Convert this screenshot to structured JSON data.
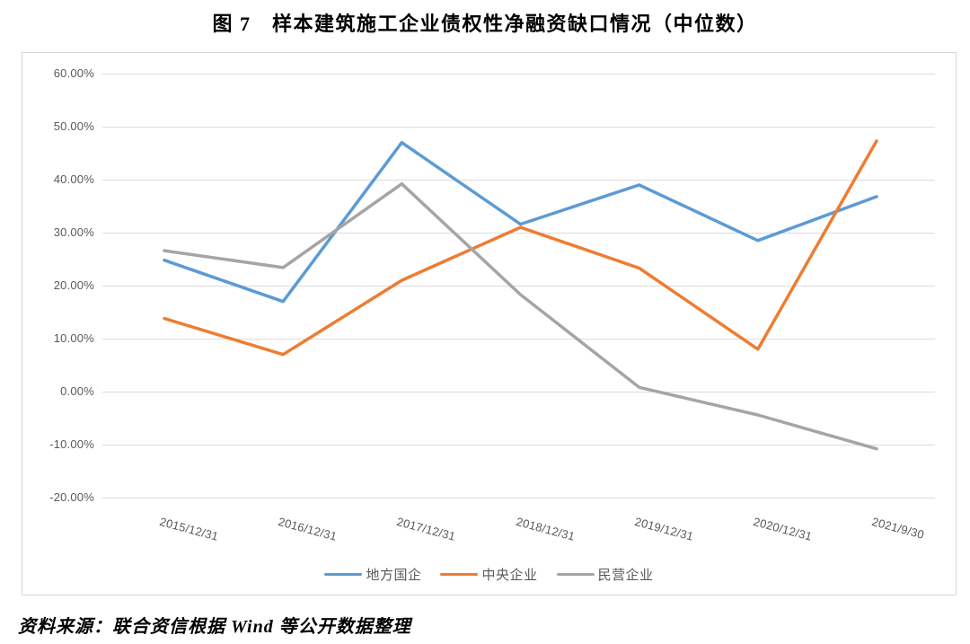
{
  "page": {
    "title": "图 7　样本建筑施工企业债权性净融资缺口情况（中位数）",
    "source": "资料来源：联合资信根据 Wind 等公开数据整理"
  },
  "chart_data": {
    "type": "line",
    "title": "图 7　样本建筑施工企业债权性净融资缺口情况（中位数）",
    "categories": [
      "2015/12/31",
      "2016/12/31",
      "2017/12/31",
      "2018/12/31",
      "2019/12/31",
      "2020/12/31",
      "2021/9/30"
    ],
    "series": [
      {
        "name": "地方国企",
        "color": "#5B9BD5",
        "values": [
          24.8,
          17.0,
          47.0,
          31.6,
          39.0,
          28.5,
          36.8
        ]
      },
      {
        "name": "中央企业",
        "color": "#ED7D31",
        "values": [
          13.8,
          7.0,
          21.0,
          31.0,
          23.3,
          8.0,
          47.3
        ]
      },
      {
        "name": "民营企业",
        "color": "#A5A5A5",
        "values": [
          26.6,
          23.4,
          39.2,
          18.3,
          0.8,
          -4.4,
          -10.8
        ]
      }
    ],
    "ylabel_format": "percent",
    "yticks": [
      "60.00%",
      "50.00%",
      "40.00%",
      "30.00%",
      "20.00%",
      "10.00%",
      "0.00%",
      "-10.00%",
      "-20.00%"
    ],
    "ytick_values": [
      60,
      50,
      40,
      30,
      20,
      10,
      0,
      -10,
      -20
    ],
    "ylim": [
      -20,
      60
    ],
    "grid": true,
    "legend_position": "bottom",
    "gridline_color": "#dcdcdc",
    "axis_text_color": "#595959"
  }
}
